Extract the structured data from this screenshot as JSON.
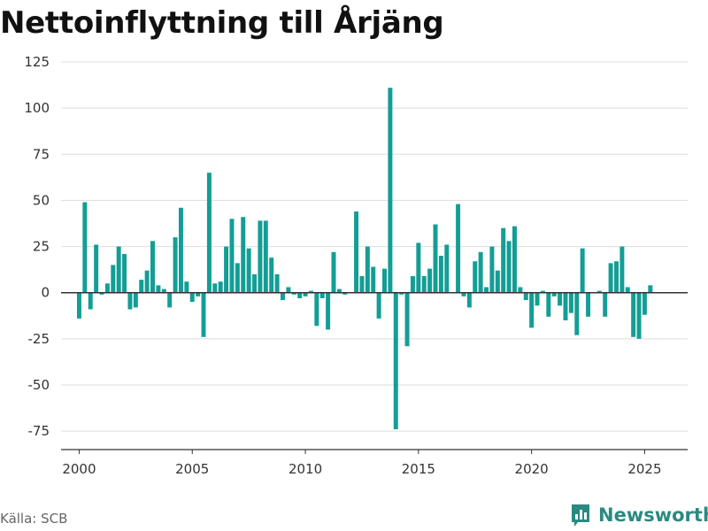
{
  "title": "Nettoinflyttning till Årjäng",
  "source": "Källa: SCB",
  "brand": "Newsworthy",
  "colors": {
    "bar": "#139e95",
    "grid": "#dddddd",
    "axis": "#333333",
    "brand": "#2a8a7f"
  },
  "chart_data": {
    "type": "bar",
    "title": "Nettoinflyttning till Årjäng",
    "xlabel": "",
    "ylabel": "",
    "frequency": "quarterly",
    "xlim": [
      1999.2,
      2026.9
    ],
    "ylim": [
      -85,
      125
    ],
    "xticks": [
      2000,
      2005,
      2010,
      2015,
      2020,
      2025
    ],
    "yticks": [
      -75,
      -50,
      -25,
      0,
      25,
      50,
      75,
      100,
      125
    ],
    "grid": true,
    "legend": "none",
    "start": "2000 Q1",
    "values": [
      -14,
      49,
      -9,
      26,
      -1,
      5,
      15,
      25,
      21,
      -9,
      -8,
      7,
      12,
      28,
      4,
      2,
      -8,
      30,
      46,
      6,
      -5,
      -2,
      -24,
      65,
      5,
      6,
      25,
      40,
      16,
      41,
      24,
      10,
      39,
      39,
      19,
      10,
      -4,
      3,
      -1,
      -3,
      -2,
      1,
      -18,
      -3,
      -20,
      22,
      2,
      -1,
      0,
      44,
      9,
      25,
      14,
      -14,
      13,
      111,
      -74,
      -1,
      -29,
      9,
      27,
      9,
      13,
      37,
      20,
      26,
      0,
      48,
      -2,
      -8,
      17,
      22,
      3,
      25,
      12,
      35,
      28,
      36,
      3,
      -4,
      -19,
      -7,
      1,
      -13,
      -2,
      -7,
      -15,
      -11,
      -23,
      24,
      -13,
      0,
      1,
      -13,
      16,
      17,
      25,
      3,
      -24,
      -25,
      -12,
      4
    ]
  }
}
